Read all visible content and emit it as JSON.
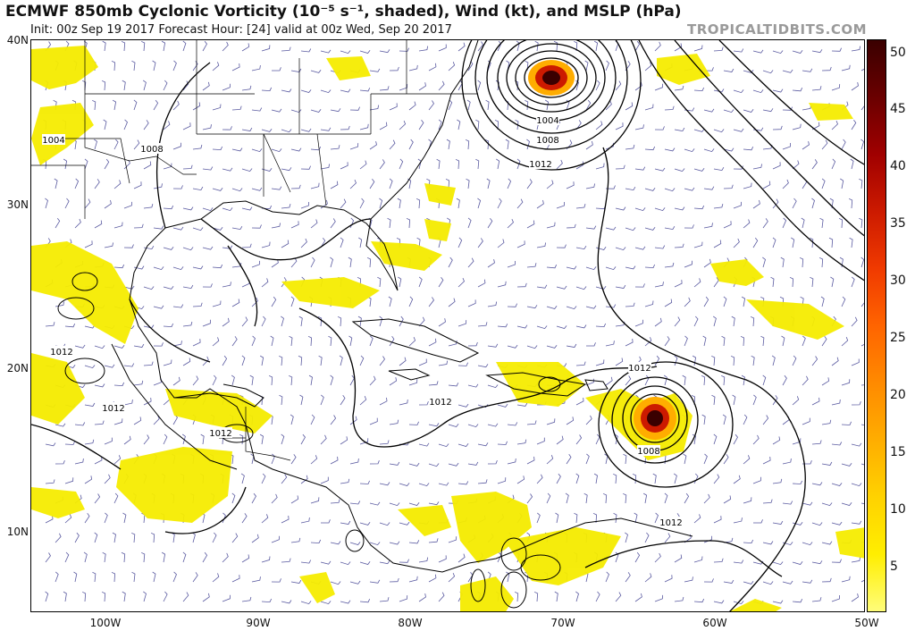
{
  "header": {
    "title": "ECMWF 850mb Cyclonic Vorticity (10⁻⁵ s⁻¹, shaded), Wind (kt), and MSLP (hPa)",
    "subtitle": "Init: 00z Sep 19 2017   Forecast Hour: [24]   valid at 00z Wed, Sep 20 2017",
    "brand": "TROPICALTIDBITS.COM"
  },
  "axes": {
    "lat_labels": [
      "40N",
      "30N",
      "20N",
      "10N"
    ],
    "lon_labels": [
      "100W",
      "90W",
      "80W",
      "70W",
      "60W",
      "50W"
    ]
  },
  "colorbar": {
    "ticks": [
      "50",
      "45",
      "40",
      "35",
      "30",
      "25",
      "20",
      "15",
      "10",
      "5"
    ],
    "colors": [
      "#fffd7a",
      "#ffee00",
      "#ffd200",
      "#ffad00",
      "#ff8a00",
      "#ff6400",
      "#f03a00",
      "#cc1a00",
      "#a00000",
      "#6a0000",
      "#3a0000"
    ]
  },
  "isobar_labels": [
    "1004",
    "1008",
    "1012",
    "1004",
    "1008",
    "1012",
    "1012",
    "1012",
    "1012",
    "1012",
    "1008",
    "1012",
    "1012",
    "1008"
  ],
  "colors": {
    "land": "#000000",
    "shading": "#f5ec00",
    "barb": "#5a5aa0"
  }
}
